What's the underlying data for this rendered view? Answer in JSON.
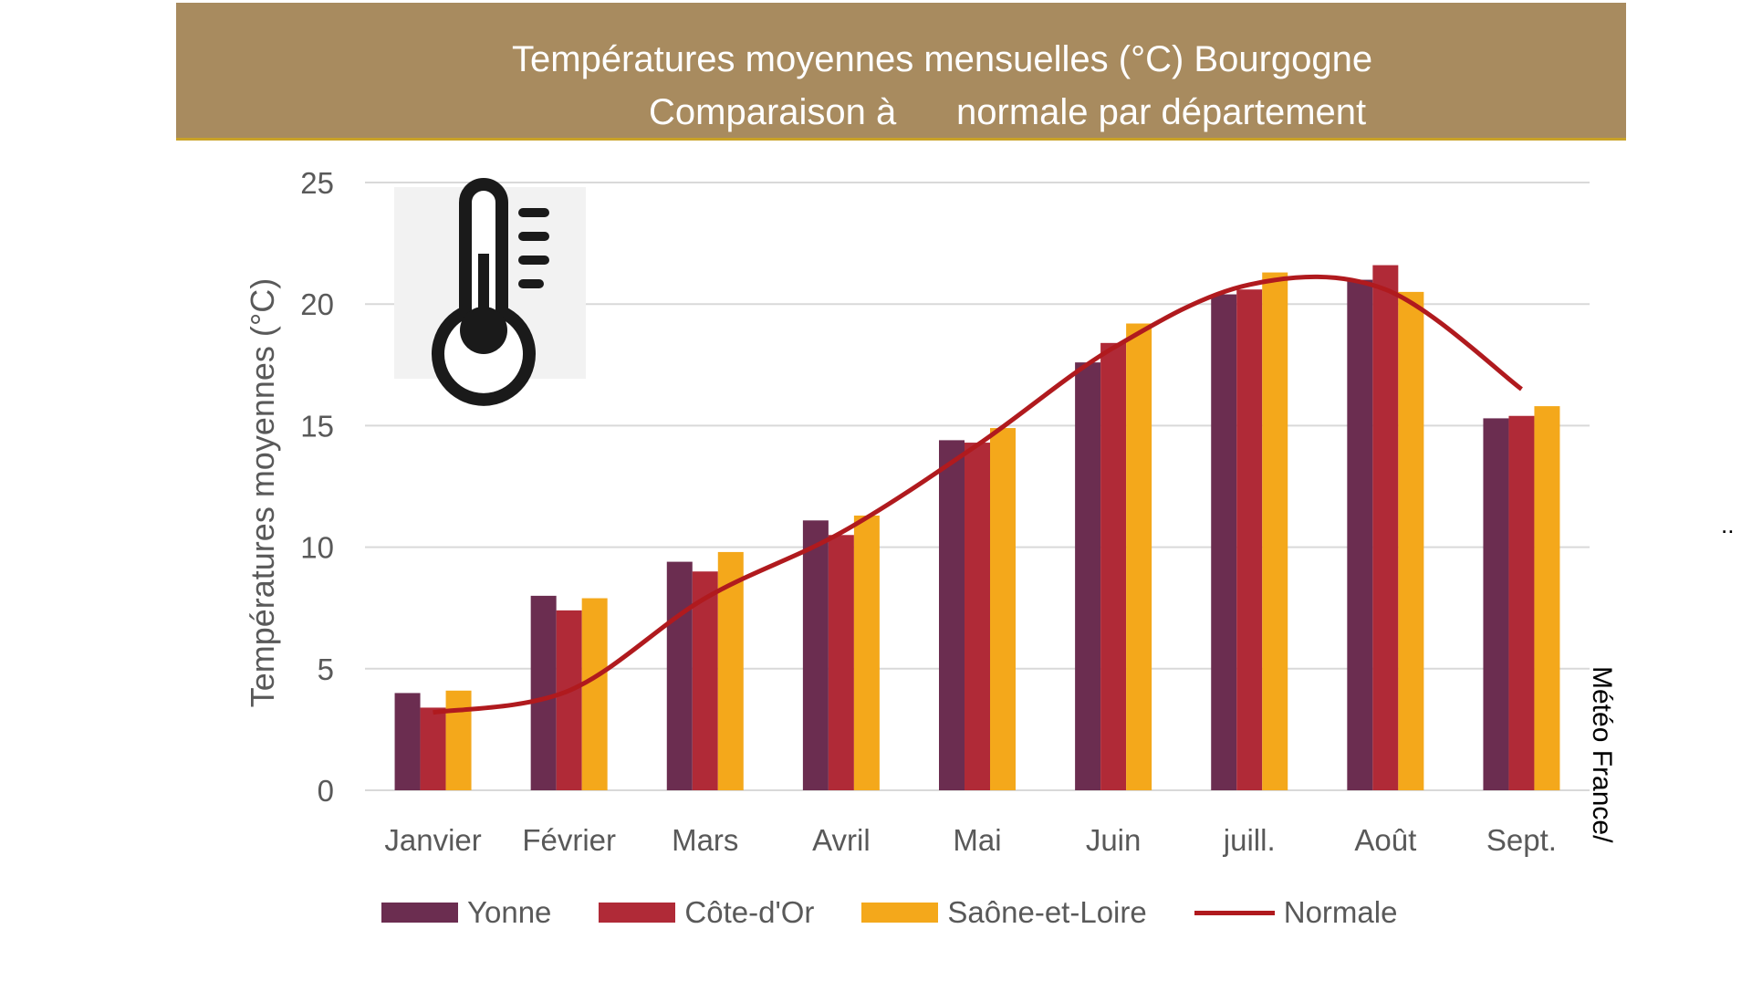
{
  "header": {
    "title_line1": "Températures moyennes mensuelles (°C)  Bourgogne",
    "title_line2a": "Comparaison à",
    "title_line2b": "normale par département"
  },
  "source": "Météo France/",
  "corner_marks": "..",
  "icon": "thermometer-icon",
  "colors": {
    "banner": "#a88b5f",
    "banner_border": "#c9a227",
    "yonne": "#6b2d50",
    "cote_dor": "#b02a37",
    "saone_et_loire": "#f4a81b",
    "normale": "#b01a1e",
    "gridline": "#d9d9d9",
    "axis_text": "#595959"
  },
  "chart_data": {
    "type": "bar",
    "ylabel": "Températures moyennes (°C)",
    "ylim": [
      0,
      25
    ],
    "yticks": [
      0,
      5,
      10,
      15,
      20,
      25
    ],
    "grid": true,
    "legend_position": "bottom",
    "categories": [
      "Janvier",
      "Février",
      "Mars",
      "Avril",
      "Mai",
      "Juin",
      "juill.",
      "Août",
      "Sept."
    ],
    "series": [
      {
        "name": "Yonne",
        "type": "bar",
        "values": [
          4.0,
          8.0,
          9.4,
          11.1,
          14.4,
          17.6,
          20.4,
          21.0,
          15.3
        ]
      },
      {
        "name": "Côte-d'Or",
        "type": "bar",
        "values": [
          3.4,
          7.4,
          9.0,
          10.5,
          14.3,
          18.4,
          20.6,
          21.6,
          15.4
        ]
      },
      {
        "name": "Saône-et-Loire",
        "type": "bar",
        "values": [
          4.1,
          7.9,
          9.8,
          11.3,
          14.9,
          19.2,
          21.3,
          20.5,
          15.8
        ]
      },
      {
        "name": "Normale",
        "type": "line",
        "values": [
          3.2,
          4.1,
          7.9,
          10.6,
          14.2,
          18.2,
          20.8,
          20.6,
          16.5
        ]
      }
    ]
  }
}
